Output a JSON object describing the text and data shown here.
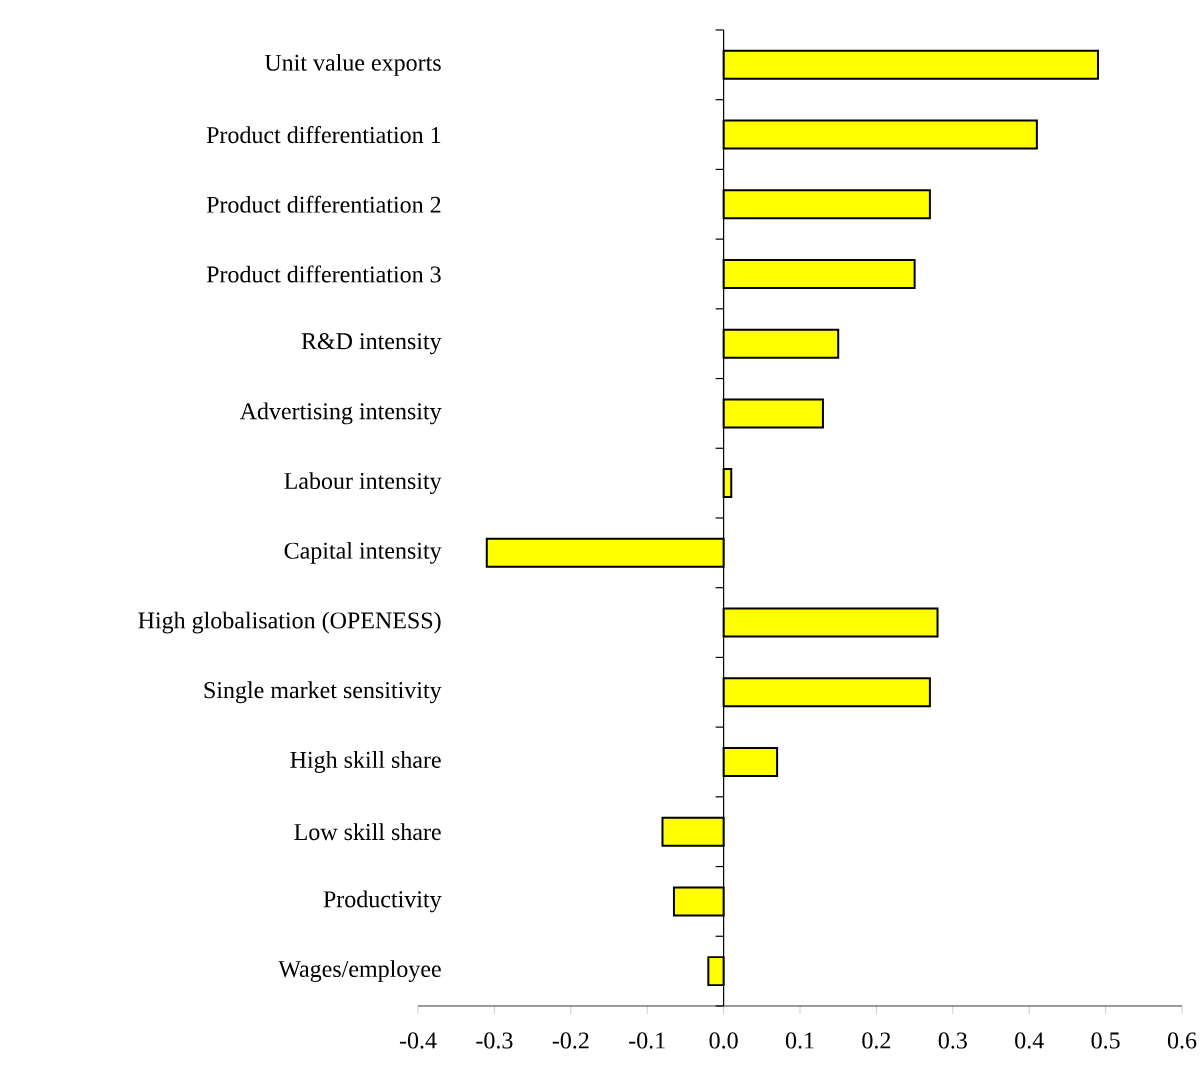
{
  "chart_data": {
    "type": "bar",
    "orientation": "horizontal",
    "categories": [
      "Unit value exports",
      "Product differentiation 1",
      "Product differentiation 2",
      "Product differentiation 3",
      "R&D intensity",
      "Advertising intensity",
      "Labour intensity",
      "Capital intensity",
      "High globalisation (OPENESS)",
      "Single market sensitivity",
      "High skill share",
      "Low skill share",
      "Productivity",
      "Wages/employee"
    ],
    "values": [
      0.49,
      0.41,
      0.27,
      0.25,
      0.15,
      0.13,
      0.01,
      -0.31,
      0.28,
      0.27,
      0.07,
      -0.08,
      -0.065,
      -0.02
    ],
    "color": "#ffff00",
    "xlim": [
      -0.4,
      0.6
    ],
    "xticks": [
      {
        "value": -0.4,
        "label": "-0.4"
      },
      {
        "value": -0.3,
        "label": "-0.3"
      },
      {
        "value": -0.2,
        "label": "-0.2"
      },
      {
        "value": -0.1,
        "label": "-0.1"
      },
      {
        "value": 0,
        "label": "0.0"
      },
      {
        "value": 0.1,
        "label": "0.1"
      },
      {
        "value": 0.2,
        "label": "0.2"
      },
      {
        "value": 0.3,
        "label": "0.3"
      },
      {
        "value": 0.4,
        "label": "0.4"
      },
      {
        "value": 0.5,
        "label": "0.5"
      },
      {
        "value": 0.6,
        "label": "0.6"
      }
    ]
  }
}
